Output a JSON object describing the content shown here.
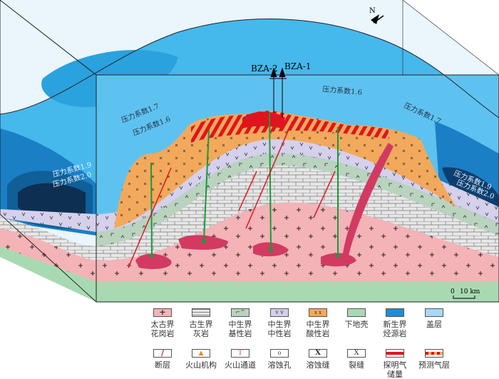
{
  "diagram": {
    "north_label": "N",
    "wells": [
      "BZA-2",
      "BZA-1"
    ],
    "pressure_labels": {
      "left_upper_1": "压力系数1.7",
      "left_upper_2": "压力系数1.6",
      "center": "压力系数1.6",
      "right_upper": "压力系数1.7",
      "left_lower_1": "压力系数1.9",
      "left_lower_2": "压力系数2.0",
      "right_lower_1": "压力系数1.9",
      "right_lower_2": "压力系数2.0"
    },
    "scale": {
      "zero": "0",
      "value": "10 km"
    },
    "colors": {
      "granite": "#f4b3b7",
      "limestone": "#e6e6e6",
      "basic_rock": "#b9d3bf",
      "intermediate_rock": "#d5d0ec",
      "acidic_rock": "#f3a95c",
      "lower_crust": "#a8dab2",
      "source_rock": "#1a8fd6",
      "cap_layer": "#a6d9f5",
      "fault": "#e0141e",
      "gas": "#e0141e",
      "volcanic_channel": "#d23a62"
    }
  },
  "legend": {
    "row1": [
      {
        "label": "太古界\n花岗岩",
        "icon": "granite-plus"
      },
      {
        "label": "古生界\n灰岩",
        "icon": "limestone-brick"
      },
      {
        "label": "中生界\n基性岩",
        "icon": "basic-rock"
      },
      {
        "label": "中生界\n中性岩",
        "icon": "intermediate-v"
      },
      {
        "label": "中生界\n酸性岩",
        "icon": "acidic-x"
      },
      {
        "label": "下地壳",
        "icon": "lower-crust"
      },
      {
        "label": "新生界\n烃源岩",
        "icon": "source-rock"
      },
      {
        "label": "盖层",
        "icon": "cap-layer"
      }
    ],
    "row2": [
      {
        "label": "断层",
        "icon": "fault"
      },
      {
        "label": "火山机构",
        "icon": "volcano"
      },
      {
        "label": "火山通道",
        "icon": "volcanic-channel"
      },
      {
        "label": "溶蚀孔",
        "icon": "dissolution-pore"
      },
      {
        "label": "溶蚀缝",
        "icon": "dissolution-fracture"
      },
      {
        "label": "裂缝",
        "icon": "fracture"
      },
      {
        "label": "探明气\n储量",
        "icon": "proven-gas"
      },
      {
        "label": "预测气层",
        "icon": "predicted-gas"
      }
    ]
  }
}
